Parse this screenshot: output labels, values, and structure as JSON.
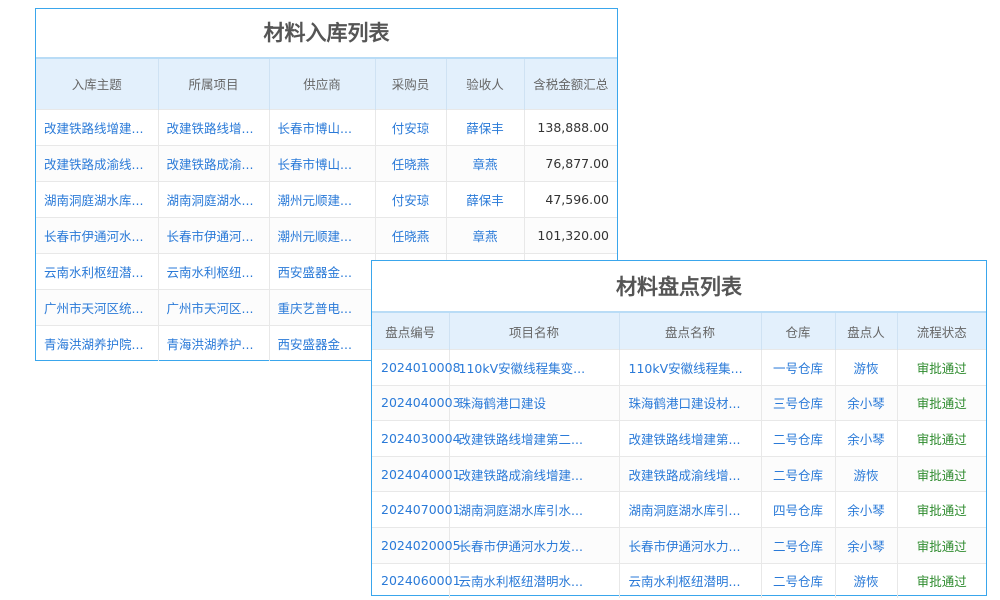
{
  "inbound": {
    "title": "材料入库列表",
    "headers": [
      "入库主题",
      "所属项目",
      "供应商",
      "采购员",
      "验收人",
      "含税金额汇总"
    ],
    "rows": [
      [
        "改建铁路线增建...",
        "改建铁路线增...",
        "长春市博山...",
        "付安琼",
        "薛保丰",
        "138,888.00"
      ],
      [
        "改建铁路成渝线...",
        "改建铁路成渝...",
        "长春市博山...",
        "任晓燕",
        "章燕",
        "76,877.00"
      ],
      [
        "湖南洞庭湖水库...",
        "湖南洞庭湖水...",
        "潮州元顺建...",
        "付安琼",
        "薛保丰",
        "47,596.00"
      ],
      [
        "长春市伊通河水...",
        "长春市伊通河...",
        "潮州元顺建...",
        "任晓燕",
        "章燕",
        "101,320.00"
      ],
      [
        "云南水利枢纽潜...",
        "云南水利枢纽...",
        "西安盛器金...",
        "",
        "",
        ""
      ],
      [
        "广州市天河区统...",
        "广州市天河区...",
        "重庆艺普电...",
        "",
        "",
        ""
      ],
      [
        "青海洪湖养护院...",
        "青海洪湖养护...",
        "西安盛器金...",
        "",
        "",
        ""
      ]
    ]
  },
  "stocktake": {
    "title": "材料盘点列表",
    "headers": [
      "盘点编号",
      "项目名称",
      "盘点名称",
      "仓库",
      "盘点人",
      "流程状态"
    ],
    "rows": [
      [
        "2024010008",
        "110kV安徽线程集变...",
        "110kV安徽线程集...",
        "一号仓库",
        "游恢",
        "审批通过"
      ],
      [
        "2024040003",
        "珠海鹤港口建设",
        "珠海鹤港口建设材...",
        "三号仓库",
        "余小琴",
        "审批通过"
      ],
      [
        "2024030004",
        "改建铁路线增建第二...",
        "改建铁路线增建第...",
        "二号仓库",
        "余小琴",
        "审批通过"
      ],
      [
        "2024040001",
        "改建铁路成渝线增建...",
        "改建铁路成渝线增...",
        "二号仓库",
        "游恢",
        "审批通过"
      ],
      [
        "2024070001",
        "湖南洞庭湖水库引水...",
        "湖南洞庭湖水库引...",
        "四号仓库",
        "余小琴",
        "审批通过"
      ],
      [
        "2024020005",
        "长春市伊通河水力发...",
        "长春市伊通河水力...",
        "二号仓库",
        "余小琴",
        "审批通过"
      ],
      [
        "2024060001",
        "云南水利枢纽潜明水...",
        "云南水利枢纽潜明...",
        "二号仓库",
        "游恢",
        "审批通过"
      ]
    ]
  },
  "colors": {
    "link": "#2a7ad8",
    "approved": "#2e8b2e",
    "border": "#3aa6ec",
    "header_bg": "#e3f0fc"
  }
}
